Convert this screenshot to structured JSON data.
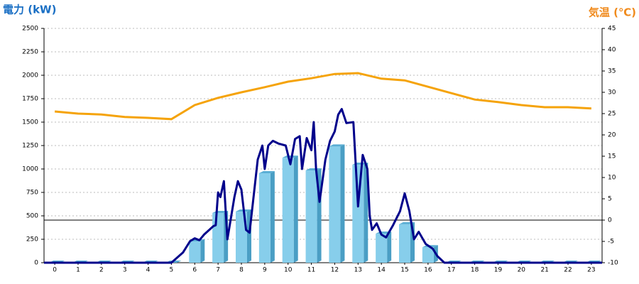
{
  "chart_data": {
    "type": "bar-line",
    "y_axis_label": "電力 (kW)",
    "y2_axis_label": "気温 (℃)",
    "categories": [
      "0",
      "1",
      "2",
      "3",
      "4",
      "5",
      "6",
      "7",
      "8",
      "9",
      "10",
      "11",
      "12",
      "13",
      "14",
      "15",
      "16",
      "17",
      "18",
      "19",
      "20",
      "21",
      "22",
      "23"
    ],
    "xlim": [
      -0.46,
      23.46
    ],
    "ylim": [
      0,
      2500
    ],
    "yticks": [
      0,
      250,
      500,
      750,
      1000,
      1250,
      1500,
      1750,
      2000,
      2250,
      2500
    ],
    "y2lim": [
      -10,
      45
    ],
    "y2ticks": [
      -10,
      -5,
      0,
      5,
      10,
      15,
      20,
      25,
      30,
      35,
      40,
      45
    ],
    "grid": true,
    "bars": {
      "color": "#87ceeb",
      "values": [
        0,
        0,
        0,
        0,
        0,
        0,
        227,
        530,
        545,
        955,
        1120,
        985,
        1240,
        1045,
        310,
        410,
        165,
        0,
        0,
        0,
        0,
        0,
        0,
        0
      ]
    },
    "power_line": {
      "color": "#00008b",
      "x": [
        -0.46,
        5,
        5.5,
        5.8,
        6,
        6.2,
        6.4,
        6.8,
        6.9,
        7,
        7.1,
        7.25,
        7.4,
        7.7,
        7.85,
        8,
        8.2,
        8.35,
        8.7,
        8.9,
        9,
        9.15,
        9.35,
        9.6,
        9.9,
        10.1,
        10.3,
        10.5,
        10.6,
        10.8,
        11,
        11.1,
        11.2,
        11.35,
        11.6,
        11.8,
        12,
        12.15,
        12.3,
        12.5,
        12.8,
        13,
        13.2,
        13.4,
        13.5,
        13.6,
        13.8,
        14,
        14.2,
        14.5,
        14.8,
        15,
        15.2,
        15.4,
        15.6,
        15.9,
        16.2,
        16.4,
        16.7,
        23.46
      ],
      "values": [
        0,
        0,
        110,
        230,
        260,
        240,
        300,
        390,
        400,
        750,
        700,
        870,
        250,
        700,
        870,
        780,
        350,
        320,
        1100,
        1250,
        1000,
        1250,
        1300,
        1270,
        1250,
        1050,
        1320,
        1350,
        1000,
        1330,
        1200,
        1500,
        1000,
        650,
        1100,
        1300,
        1400,
        1580,
        1640,
        1490,
        1500,
        600,
        1150,
        1000,
        500,
        350,
        420,
        300,
        270,
        400,
        550,
        740,
        550,
        250,
        330,
        200,
        150,
        70,
        0,
        0
      ]
    },
    "temperature": {
      "color": "#f5a30a",
      "axis": "y2",
      "values": [
        25.5,
        25,
        24.8,
        24.2,
        24,
        23.7,
        27,
        28.7,
        30,
        31.2,
        32.5,
        33.3,
        34.3,
        34.5,
        33.2,
        32.8,
        31.3,
        29.8,
        28.3,
        27.7,
        27,
        26.5,
        26.5,
        26.2
      ]
    }
  }
}
